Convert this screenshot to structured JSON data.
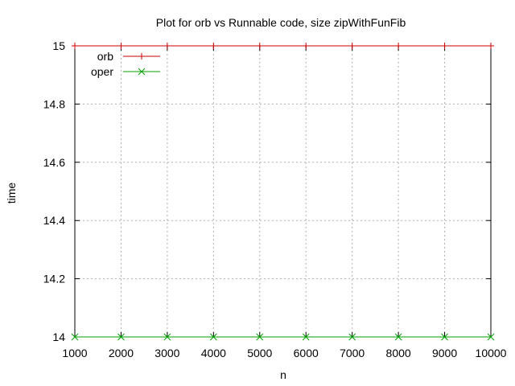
{
  "chart_data": {
    "type": "line",
    "title": "Plot for orb vs Runnable code, size zipWithFunFib",
    "xlabel": "n",
    "ylabel": "time",
    "xlim": [
      1000,
      10000
    ],
    "ylim": [
      14,
      15
    ],
    "x_ticks": [
      1000,
      2000,
      3000,
      4000,
      5000,
      6000,
      7000,
      8000,
      9000,
      10000
    ],
    "y_ticks": [
      14,
      14.2,
      14.4,
      14.6,
      14.8,
      15
    ],
    "x_tick_labels": [
      "1000",
      "2000",
      "3000",
      "4000",
      "5000",
      "6000",
      "7000",
      "8000",
      "9000",
      "10000"
    ],
    "y_tick_labels": [
      "14",
      "14.2",
      "14.4",
      "14.6",
      "14.8",
      "15"
    ],
    "grid": true,
    "legend_position": "top-left",
    "series": [
      {
        "name": "orb",
        "color": "#cc0000",
        "marker": "plus",
        "x": [
          1000,
          2000,
          3000,
          4000,
          5000,
          6000,
          7000,
          8000,
          9000,
          10000
        ],
        "y": [
          15,
          15,
          15,
          15,
          15,
          15,
          15,
          15,
          15,
          15
        ]
      },
      {
        "name": "oper",
        "color": "#00a000",
        "marker": "cross",
        "x": [
          1000,
          2000,
          3000,
          4000,
          5000,
          6000,
          7000,
          8000,
          9000,
          10000
        ],
        "y": [
          14,
          14,
          14,
          14,
          14,
          14,
          14,
          14,
          14,
          14
        ]
      }
    ]
  }
}
